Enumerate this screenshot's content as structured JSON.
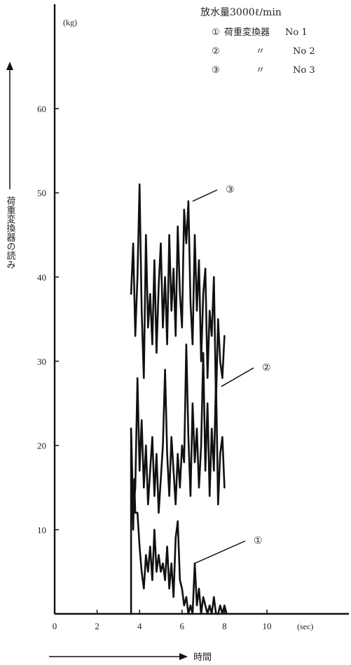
{
  "chart_data": {
    "type": "line",
    "title": "放水量3000ℓ/min",
    "ylabel": "荷重変換器の読み",
    "xlabel": "時間",
    "yunit": "(kg)",
    "xunit": "(sec)",
    "xlim": [
      0,
      11.2
    ],
    "ylim": [
      0,
      62
    ],
    "xticks": [
      0,
      2,
      4,
      6,
      8,
      10
    ],
    "yticks": [
      10,
      20,
      30,
      40,
      50,
      60
    ],
    "legend": [
      {
        "marker": "①",
        "name": "荷重変換器",
        "no": "No 1"
      },
      {
        "marker": "②",
        "name": "〃",
        "no": "No 2"
      },
      {
        "marker": "③",
        "name": "〃",
        "no": "No 3"
      }
    ],
    "series": [
      {
        "name": "①",
        "x": [
          3.6,
          3.6,
          3.7,
          3.75,
          3.8,
          3.9,
          4.0,
          4.1,
          4.2,
          4.3,
          4.4,
          4.5,
          4.6,
          4.7,
          4.8,
          4.9,
          5.0,
          5.1,
          5.2,
          5.3,
          5.4,
          5.5,
          5.6,
          5.7,
          5.8,
          5.9,
          6.0,
          6.1,
          6.2,
          6.3,
          6.4,
          6.5,
          6.6,
          6.7,
          6.8,
          6.9,
          7.0,
          7.1,
          7.2,
          7.3,
          7.4,
          7.5,
          7.6,
          7.7,
          7.8,
          7.9,
          8.0,
          8.1
        ],
        "values": [
          0,
          22,
          10,
          16,
          12,
          12,
          8,
          5,
          3,
          7,
          5,
          8,
          4,
          10,
          5,
          7,
          5,
          6,
          4,
          8,
          3,
          6,
          2,
          9,
          11,
          4,
          3,
          1,
          2,
          0,
          1,
          0,
          6,
          1,
          3,
          0,
          2,
          1,
          0,
          1,
          0,
          2,
          0,
          0,
          1,
          0,
          1,
          0
        ]
      },
      {
        "name": "②",
        "x": [
          3.6,
          3.7,
          3.8,
          3.9,
          4.0,
          4.1,
          4.2,
          4.3,
          4.4,
          4.5,
          4.6,
          4.7,
          4.8,
          4.9,
          5.0,
          5.1,
          5.2,
          5.3,
          5.4,
          5.5,
          5.6,
          5.7,
          5.8,
          5.9,
          6.0,
          6.1,
          6.2,
          6.3,
          6.4,
          6.5,
          6.6,
          6.7,
          6.8,
          6.9,
          7.0,
          7.1,
          7.2,
          7.3,
          7.4,
          7.5,
          7.6,
          7.7,
          7.8,
          7.9,
          8.0
        ],
        "values": [
          22,
          12,
          15,
          28,
          17,
          23,
          15,
          20,
          13,
          17,
          21,
          14,
          19,
          12,
          16,
          20,
          29,
          19,
          14,
          21,
          17,
          13,
          19,
          15,
          20,
          18,
          32,
          21,
          14,
          25,
          18,
          22,
          15,
          20,
          31,
          17,
          25,
          14,
          22,
          17,
          28,
          13,
          19,
          21,
          15
        ]
      },
      {
        "name": "③",
        "x": [
          3.6,
          3.7,
          3.8,
          3.9,
          4.0,
          4.1,
          4.2,
          4.3,
          4.4,
          4.5,
          4.6,
          4.7,
          4.8,
          4.9,
          5.0,
          5.1,
          5.2,
          5.3,
          5.4,
          5.5,
          5.6,
          5.7,
          5.8,
          5.9,
          6.0,
          6.1,
          6.2,
          6.3,
          6.4,
          6.5,
          6.6,
          6.7,
          6.8,
          6.9,
          7.0,
          7.1,
          7.2,
          7.3,
          7.4,
          7.5,
          7.6,
          7.7,
          7.8,
          7.9,
          8.0
        ],
        "values": [
          38,
          44,
          33,
          40,
          51,
          36,
          28,
          45,
          34,
          38,
          32,
          42,
          31,
          39,
          44,
          34,
          40,
          32,
          45,
          36,
          41,
          33,
          46,
          38,
          34,
          48,
          44,
          49,
          37,
          32,
          45,
          36,
          42,
          30,
          38,
          41,
          28,
          36,
          33,
          40,
          25,
          35,
          30,
          28,
          33
        ]
      }
    ],
    "callouts": [
      {
        "label": "①",
        "at_x": 6.6,
        "at_y": 6
      },
      {
        "label": "②",
        "at_x": 7.85,
        "at_y": 27
      },
      {
        "label": "③",
        "at_x": 6.5,
        "at_y": 49
      }
    ]
  }
}
